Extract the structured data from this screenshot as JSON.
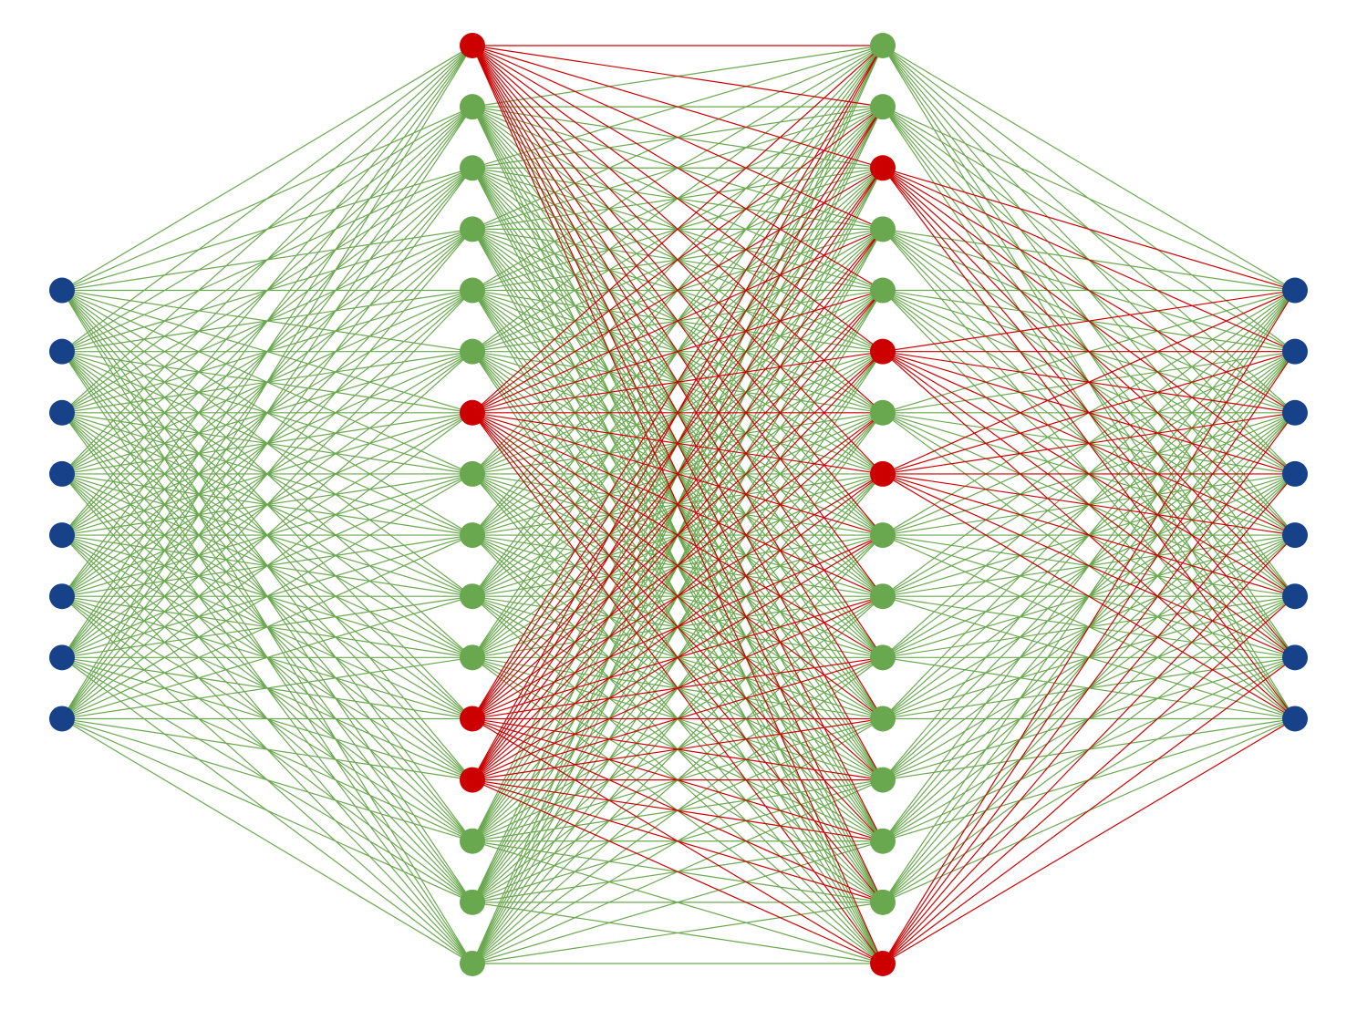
{
  "network": {
    "layer_sizes": [
      8,
      16,
      16,
      8
    ],
    "node_colors": [
      "#17428a",
      "#6aa84f",
      "#6aa84f",
      "#17428a"
    ],
    "edge_color": "#6aa84f",
    "highlight": {
      "color": "#cc0000",
      "nodes": [
        [],
        [
          0,
          6,
          11,
          12
        ],
        [
          2,
          5,
          7,
          15
        ],
        []
      ]
    }
  }
}
